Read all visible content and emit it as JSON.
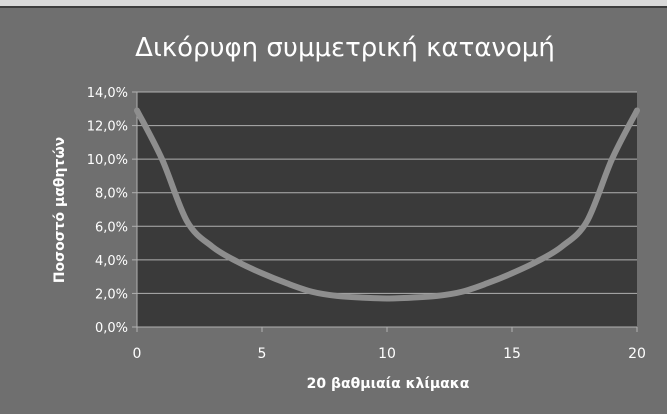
{
  "chart_data": {
    "type": "line",
    "title": "Δικόρυφη συμμετρική κατανομή",
    "xlabel": "20 βαθμιαία κλίμακα",
    "ylabel": "Ποσοστό μαθητών",
    "xlim": [
      0,
      20
    ],
    "ylim": [
      0,
      14
    ],
    "x_ticks": [
      0,
      5,
      10,
      15,
      20
    ],
    "x_tick_labels": [
      "0",
      "5",
      "10",
      "15",
      "20"
    ],
    "y_ticks": [
      0,
      2,
      4,
      6,
      8,
      10,
      12,
      14
    ],
    "y_tick_labels": [
      "0,0%",
      "2,0%",
      "4,0%",
      "6,0%",
      "8,0%",
      "10,0%",
      "12,0%",
      "14,0%"
    ],
    "grid": "horizontal",
    "legend": "none",
    "series": [
      {
        "x": [
          0,
          1,
          2,
          3,
          4,
          5,
          6,
          7,
          8,
          9,
          10,
          11,
          12,
          13,
          14,
          15,
          16,
          17,
          18,
          19,
          20
        ],
        "y": [
          12.9,
          10.0,
          6.3,
          4.8,
          3.9,
          3.2,
          2.6,
          2.1,
          1.85,
          1.75,
          1.7,
          1.75,
          1.85,
          2.1,
          2.6,
          3.2,
          3.9,
          4.8,
          6.3,
          10.0,
          12.9
        ]
      }
    ],
    "colors": {
      "background": "#6f6f6f",
      "plot_area": "#3a3a3a",
      "gridline": "#b0b0b0",
      "line": "#8e8e8e",
      "text": "#ffffff"
    }
  }
}
